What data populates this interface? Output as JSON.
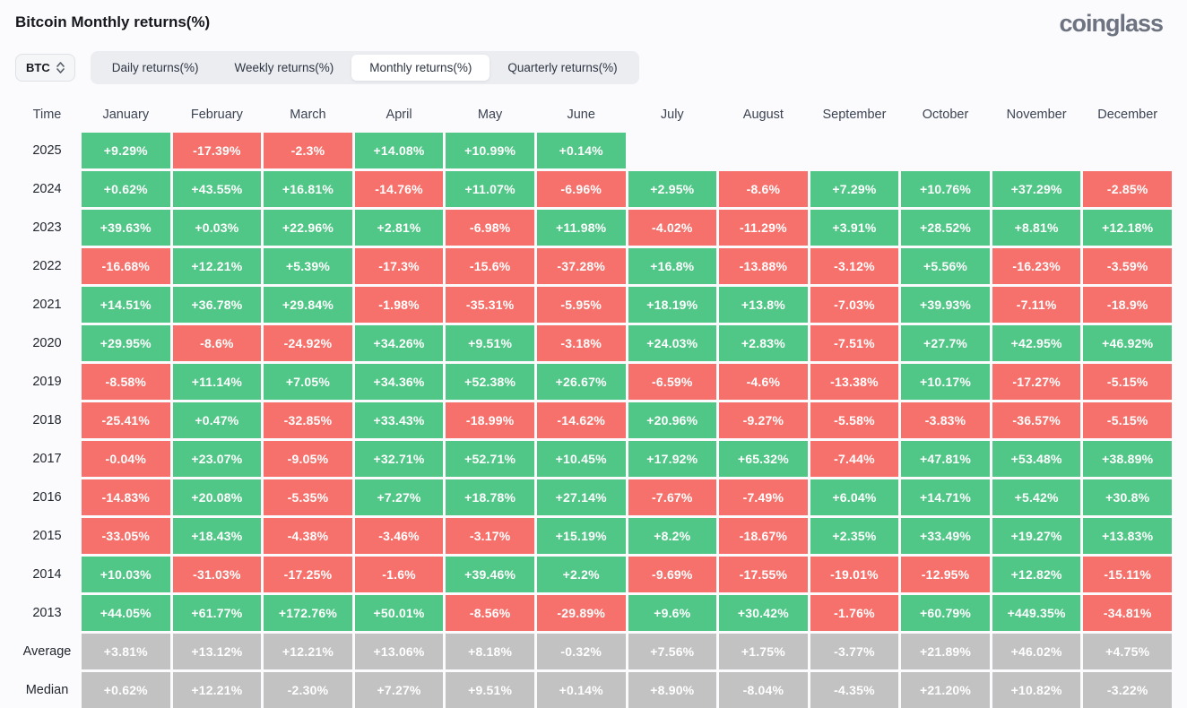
{
  "page": {
    "title": "Bitcoin Monthly returns(%)",
    "logo": "coinglass"
  },
  "toolbar": {
    "symbol_selector": {
      "value": "BTC"
    },
    "tabs": [
      {
        "label": "Daily returns(%)",
        "active": false
      },
      {
        "label": "Weekly returns(%)",
        "active": false
      },
      {
        "label": "Monthly returns(%)",
        "active": true
      },
      {
        "label": "Quarterly returns(%)",
        "active": false
      }
    ]
  },
  "colors": {
    "positive": "#50c787",
    "negative": "#f6716b",
    "neutral": "#c2c2c3"
  },
  "chart_data": {
    "type": "heatmap",
    "title": "Bitcoin Monthly returns(%)",
    "columns": [
      "Time",
      "January",
      "February",
      "March",
      "April",
      "May",
      "June",
      "July",
      "August",
      "September",
      "October",
      "November",
      "December"
    ],
    "rows": [
      {
        "label": "2025",
        "style": "signed",
        "values": [
          "+9.29%",
          "-17.39%",
          "-2.3%",
          "+14.08%",
          "+10.99%",
          "+0.14%",
          "",
          "",
          "",
          "",
          "",
          ""
        ]
      },
      {
        "label": "2024",
        "style": "signed",
        "values": [
          "+0.62%",
          "+43.55%",
          "+16.81%",
          "-14.76%",
          "+11.07%",
          "-6.96%",
          "+2.95%",
          "-8.6%",
          "+7.29%",
          "+10.76%",
          "+37.29%",
          "-2.85%"
        ]
      },
      {
        "label": "2023",
        "style": "signed",
        "values": [
          "+39.63%",
          "+0.03%",
          "+22.96%",
          "+2.81%",
          "-6.98%",
          "+11.98%",
          "-4.02%",
          "-11.29%",
          "+3.91%",
          "+28.52%",
          "+8.81%",
          "+12.18%"
        ]
      },
      {
        "label": "2022",
        "style": "signed",
        "values": [
          "-16.68%",
          "+12.21%",
          "+5.39%",
          "-17.3%",
          "-15.6%",
          "-37.28%",
          "+16.8%",
          "-13.88%",
          "-3.12%",
          "+5.56%",
          "-16.23%",
          "-3.59%"
        ]
      },
      {
        "label": "2021",
        "style": "signed",
        "values": [
          "+14.51%",
          "+36.78%",
          "+29.84%",
          "-1.98%",
          "-35.31%",
          "-5.95%",
          "+18.19%",
          "+13.8%",
          "-7.03%",
          "+39.93%",
          "-7.11%",
          "-18.9%"
        ]
      },
      {
        "label": "2020",
        "style": "signed",
        "values": [
          "+29.95%",
          "-8.6%",
          "-24.92%",
          "+34.26%",
          "+9.51%",
          "-3.18%",
          "+24.03%",
          "+2.83%",
          "-7.51%",
          "+27.7%",
          "+42.95%",
          "+46.92%"
        ]
      },
      {
        "label": "2019",
        "style": "signed",
        "values": [
          "-8.58%",
          "+11.14%",
          "+7.05%",
          "+34.36%",
          "+52.38%",
          "+26.67%",
          "-6.59%",
          "-4.6%",
          "-13.38%",
          "+10.17%",
          "-17.27%",
          "-5.15%"
        ]
      },
      {
        "label": "2018",
        "style": "signed",
        "values": [
          "-25.41%",
          "+0.47%",
          "-32.85%",
          "+33.43%",
          "-18.99%",
          "-14.62%",
          "+20.96%",
          "-9.27%",
          "-5.58%",
          "-3.83%",
          "-36.57%",
          "-5.15%"
        ]
      },
      {
        "label": "2017",
        "style": "signed",
        "values": [
          "-0.04%",
          "+23.07%",
          "-9.05%",
          "+32.71%",
          "+52.71%",
          "+10.45%",
          "+17.92%",
          "+65.32%",
          "-7.44%",
          "+47.81%",
          "+53.48%",
          "+38.89%"
        ]
      },
      {
        "label": "2016",
        "style": "signed",
        "values": [
          "-14.83%",
          "+20.08%",
          "-5.35%",
          "+7.27%",
          "+18.78%",
          "+27.14%",
          "-7.67%",
          "-7.49%",
          "+6.04%",
          "+14.71%",
          "+5.42%",
          "+30.8%"
        ]
      },
      {
        "label": "2015",
        "style": "signed",
        "values": [
          "-33.05%",
          "+18.43%",
          "-4.38%",
          "-3.46%",
          "-3.17%",
          "+15.19%",
          "+8.2%",
          "-18.67%",
          "+2.35%",
          "+33.49%",
          "+19.27%",
          "+13.83%"
        ]
      },
      {
        "label": "2014",
        "style": "signed",
        "values": [
          "+10.03%",
          "-31.03%",
          "-17.25%",
          "-1.6%",
          "+39.46%",
          "+2.2%",
          "-9.69%",
          "-17.55%",
          "-19.01%",
          "-12.95%",
          "+12.82%",
          "-15.11%"
        ]
      },
      {
        "label": "2013",
        "style": "signed",
        "values": [
          "+44.05%",
          "+61.77%",
          "+172.76%",
          "+50.01%",
          "-8.56%",
          "-29.89%",
          "+9.6%",
          "+30.42%",
          "-1.76%",
          "+60.79%",
          "+449.35%",
          "-34.81%"
        ]
      },
      {
        "label": "Average",
        "style": "neutral",
        "values": [
          "+3.81%",
          "+13.12%",
          "+12.21%",
          "+13.06%",
          "+8.18%",
          "-0.32%",
          "+7.56%",
          "+1.75%",
          "-3.77%",
          "+21.89%",
          "+46.02%",
          "+4.75%"
        ]
      },
      {
        "label": "Median",
        "style": "neutral",
        "values": [
          "+0.62%",
          "+12.21%",
          "-2.30%",
          "+7.27%",
          "+9.51%",
          "+0.14%",
          "+8.90%",
          "-8.04%",
          "-4.35%",
          "+21.20%",
          "+10.82%",
          "-3.22%"
        ]
      }
    ]
  }
}
